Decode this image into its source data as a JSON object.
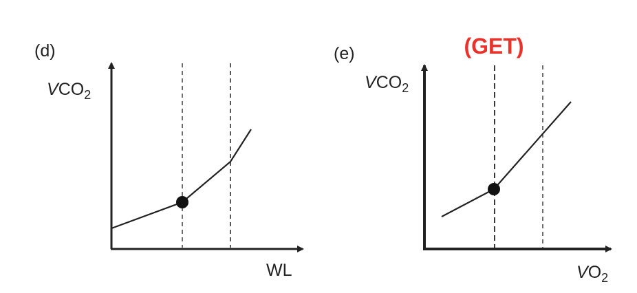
{
  "panels": [
    {
      "label": "(d)",
      "y_label": {
        "italic": "V",
        "main": "CO",
        "sub": "2"
      },
      "x_label": {
        "main": "WL"
      }
    },
    {
      "label": "(e)",
      "annotation": "(GET)",
      "y_label": {
        "italic": "V",
        "main": "CO",
        "sub": "2"
      },
      "x_label": {
        "italic": "V",
        "main": "O",
        "sub": "2"
      }
    }
  ]
}
